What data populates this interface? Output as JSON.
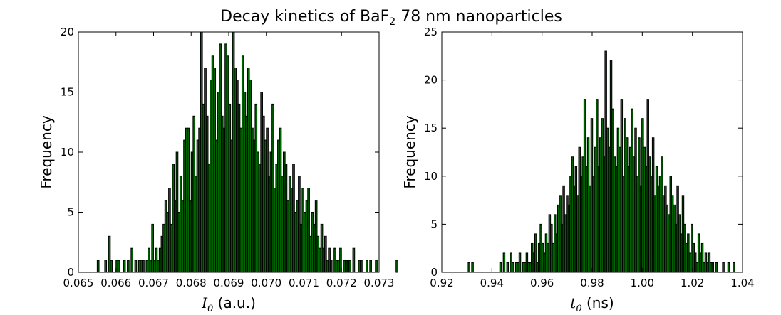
{
  "figure": {
    "title_main": "Decay kinetics of BaF",
    "title_sub": "2",
    "title_tail": " 78 nm nanoparticles"
  },
  "chart_data": [
    {
      "type": "bar",
      "subtype": "histogram",
      "bar_color": "#006400",
      "edge_color": "#000000",
      "xlabel_math": "I",
      "xlabel_sub": "0",
      "xlabel_unit": " (a.u.)",
      "ylabel": "Frequency",
      "xlim": [
        0.065,
        0.073
      ],
      "ylim": [
        0,
        20
      ],
      "xticks": [
        "0.065",
        "0.066",
        "0.067",
        "0.068",
        "0.069",
        "0.070",
        "0.071",
        "0.072",
        "0.073"
      ],
      "yticks": [
        "0",
        "5",
        "10",
        "15",
        "20"
      ],
      "bin_start": 0.0655,
      "bin_width": 5e-05,
      "counts": [
        1,
        0,
        0,
        0,
        1,
        0,
        3,
        1,
        0,
        0,
        1,
        1,
        0,
        0,
        1,
        0,
        1,
        0,
        2,
        0,
        1,
        0,
        1,
        1,
        1,
        0,
        1,
        2,
        1,
        4,
        1,
        2,
        1,
        2,
        3,
        4,
        6,
        5,
        7,
        4,
        9,
        6,
        10,
        5,
        8,
        6,
        11,
        12,
        12,
        6,
        10,
        13,
        8,
        11,
        12,
        20,
        14,
        17,
        13,
        9,
        16,
        18,
        17,
        11,
        15,
        19,
        13,
        12,
        19,
        18,
        14,
        11,
        20,
        17,
        16,
        14,
        12,
        18,
        15,
        13,
        17,
        16,
        12,
        11,
        14,
        10,
        9,
        15,
        13,
        11,
        12,
        8,
        10,
        14,
        7,
        9,
        11,
        12,
        8,
        10,
        9,
        6,
        8,
        7,
        9,
        5,
        6,
        8,
        4,
        7,
        5,
        6,
        7,
        3,
        5,
        4,
        6,
        3,
        2,
        4,
        2,
        3,
        1,
        2,
        1,
        0,
        2,
        1,
        1,
        2,
        0,
        1,
        1,
        1,
        1,
        0,
        2,
        0,
        0,
        1,
        1,
        0,
        0,
        1,
        0,
        1,
        0,
        0,
        1,
        0,
        0,
        0,
        0,
        0,
        0,
        0,
        0,
        0,
        0,
        1,
        0,
        0,
        0,
        0
      ]
    },
    {
      "type": "bar",
      "subtype": "histogram",
      "bar_color": "#006400",
      "edge_color": "#000000",
      "xlabel_math": "t",
      "xlabel_sub": "0",
      "xlabel_unit": " (ns)",
      "ylabel": "Frequency",
      "xlim": [
        0.92,
        1.04
      ],
      "ylim": [
        0,
        25
      ],
      "xticks": [
        "0.92",
        "0.94",
        "0.96",
        "0.98",
        "1.00",
        "1.02",
        "1.04"
      ],
      "yticks": [
        "0",
        "5",
        "10",
        "15",
        "20",
        "25"
      ],
      "bin_start": 0.9305,
      "bin_width": 0.0007,
      "counts": [
        1,
        0,
        1,
        0,
        0,
        0,
        0,
        0,
        0,
        0,
        0,
        0,
        0,
        0,
        0,
        0,
        0,
        0,
        1,
        0,
        2,
        0,
        1,
        0,
        2,
        1,
        0,
        1,
        1,
        2,
        0,
        1,
        1,
        2,
        1,
        1,
        3,
        2,
        4,
        1,
        3,
        5,
        3,
        2,
        4,
        3,
        6,
        5,
        3,
        6,
        4,
        7,
        8,
        5,
        9,
        6,
        8,
        7,
        10,
        12,
        9,
        11,
        8,
        13,
        10,
        12,
        18,
        11,
        14,
        9,
        16,
        10,
        13,
        18,
        11,
        14,
        16,
        12,
        23,
        15,
        13,
        22,
        17,
        12,
        11,
        15,
        13,
        18,
        10,
        16,
        14,
        11,
        13,
        17,
        12,
        15,
        10,
        14,
        9,
        16,
        13,
        11,
        18,
        12,
        10,
        14,
        8,
        11,
        9,
        10,
        12,
        8,
        9,
        7,
        6,
        10,
        8,
        7,
        5,
        9,
        6,
        4,
        8,
        5,
        3,
        4,
        2,
        5,
        3,
        2,
        1,
        4,
        2,
        3,
        1,
        2,
        1,
        2,
        1,
        1,
        0,
        1,
        0,
        0,
        0,
        1,
        0,
        0,
        1,
        0,
        0,
        1
      ]
    }
  ]
}
